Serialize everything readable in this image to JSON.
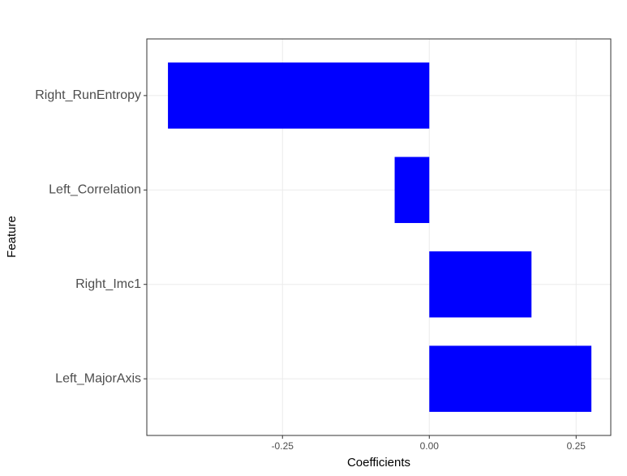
{
  "chart_data": {
    "type": "barh",
    "x_label": "Coefficients",
    "y_label": "Feature",
    "categories": [
      "Right_RunEntropy",
      "Left_Correlation",
      "Right_Imc1",
      "Left_MajorAxis"
    ],
    "values": [
      -0.445,
      -0.059,
      0.174,
      0.276
    ],
    "color": "#0000ff",
    "xlim": [
      -0.481,
      0.309
    ],
    "xticks": [
      -0.25,
      {
        "value": 0,
        "label": "0.00"
      },
      0.25
    ],
    "grid": true
  }
}
